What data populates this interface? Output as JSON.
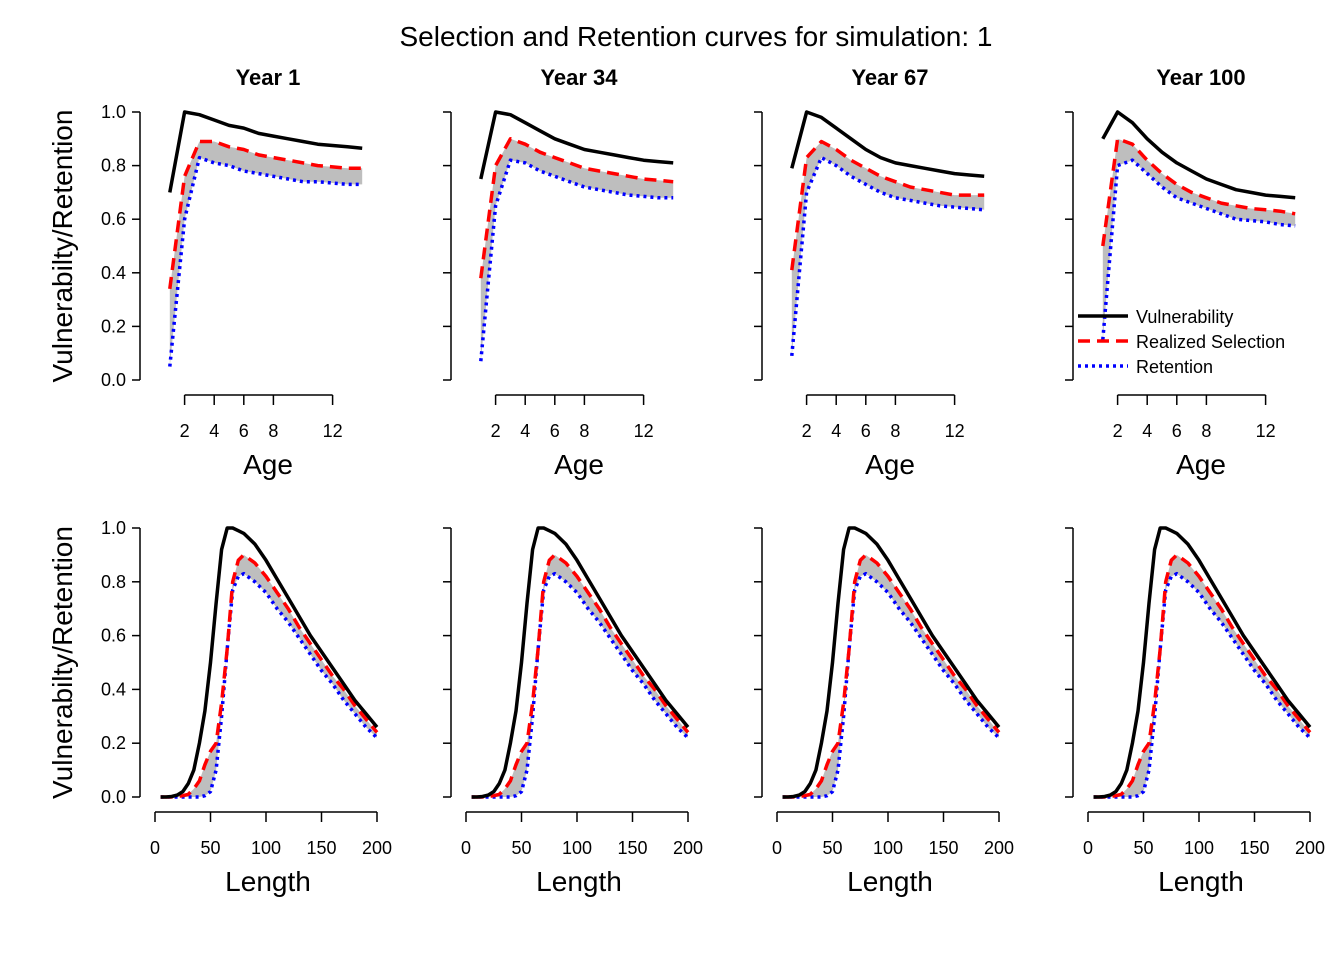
{
  "title": "Selection and Retention curves for simulation: 1",
  "legend": {
    "position": "bottom-right of top-right panel",
    "items": [
      "Vulnerability",
      "Realized Selection",
      "Retention"
    ]
  },
  "colors": {
    "vulnerability": "#000000",
    "selection": "#ff0000",
    "retention": "#0000ff",
    "band": "#bebebe"
  },
  "chart_data": [
    {
      "type": "line",
      "row": "age",
      "title": "Year 1",
      "xlabel": "Age",
      "ylabel": "Vulnerabilty/Retention",
      "xlim": [
        0,
        15
      ],
      "ylim": [
        0,
        1
      ],
      "xticks": [
        2,
        4,
        6,
        8,
        12
      ],
      "yticks": [
        "0.0",
        "0.2",
        "0.4",
        "0.6",
        "0.8",
        "1.0"
      ],
      "x": [
        1,
        2,
        3,
        4,
        5,
        6,
        7,
        8,
        9,
        10,
        11,
        12,
        13,
        14
      ],
      "series": [
        {
          "name": "Vulnerability",
          "values": [
            0.7,
            1.0,
            0.99,
            0.97,
            0.95,
            0.94,
            0.92,
            0.91,
            0.9,
            0.89,
            0.88,
            0.875,
            0.87,
            0.865
          ]
        },
        {
          "name": "Realized Selection",
          "values": [
            0.34,
            0.76,
            0.89,
            0.89,
            0.87,
            0.86,
            0.84,
            0.83,
            0.82,
            0.81,
            0.8,
            0.795,
            0.79,
            0.79
          ]
        },
        {
          "name": "Retention",
          "values": [
            0.05,
            0.6,
            0.83,
            0.81,
            0.8,
            0.78,
            0.77,
            0.76,
            0.75,
            0.74,
            0.74,
            0.735,
            0.73,
            0.73
          ]
        }
      ]
    },
    {
      "type": "line",
      "row": "age",
      "title": "Year 34",
      "xlabel": "Age",
      "ylabel": "",
      "xlim": [
        0,
        15
      ],
      "ylim": [
        0,
        1
      ],
      "xticks": [
        2,
        4,
        6,
        8,
        12
      ],
      "yticks": [],
      "x": [
        1,
        2,
        3,
        4,
        5,
        6,
        7,
        8,
        9,
        10,
        11,
        12,
        13,
        14
      ],
      "series": [
        {
          "name": "Vulnerability",
          "values": [
            0.75,
            1.0,
            0.99,
            0.96,
            0.93,
            0.9,
            0.88,
            0.86,
            0.85,
            0.84,
            0.83,
            0.82,
            0.815,
            0.81
          ]
        },
        {
          "name": "Realized Selection",
          "values": [
            0.38,
            0.8,
            0.9,
            0.88,
            0.85,
            0.83,
            0.81,
            0.79,
            0.78,
            0.77,
            0.76,
            0.75,
            0.745,
            0.74
          ]
        },
        {
          "name": "Retention",
          "values": [
            0.07,
            0.65,
            0.82,
            0.81,
            0.78,
            0.76,
            0.74,
            0.72,
            0.71,
            0.7,
            0.69,
            0.685,
            0.68,
            0.68
          ]
        }
      ]
    },
    {
      "type": "line",
      "row": "age",
      "title": "Year 67",
      "xlabel": "Age",
      "ylabel": "",
      "xlim": [
        0,
        15
      ],
      "ylim": [
        0,
        1
      ],
      "xticks": [
        2,
        4,
        6,
        8,
        12
      ],
      "yticks": [],
      "x": [
        1,
        2,
        3,
        4,
        5,
        6,
        7,
        8,
        9,
        10,
        11,
        12,
        13,
        14
      ],
      "series": [
        {
          "name": "Vulnerability",
          "values": [
            0.79,
            1.0,
            0.98,
            0.94,
            0.9,
            0.86,
            0.83,
            0.81,
            0.8,
            0.79,
            0.78,
            0.77,
            0.765,
            0.76
          ]
        },
        {
          "name": "Realized Selection",
          "values": [
            0.41,
            0.83,
            0.89,
            0.86,
            0.82,
            0.79,
            0.76,
            0.74,
            0.72,
            0.71,
            0.7,
            0.69,
            0.69,
            0.69
          ]
        },
        {
          "name": "Retention",
          "values": [
            0.09,
            0.7,
            0.83,
            0.8,
            0.76,
            0.73,
            0.7,
            0.68,
            0.67,
            0.66,
            0.65,
            0.645,
            0.64,
            0.635
          ]
        }
      ]
    },
    {
      "type": "line",
      "row": "age",
      "title": "Year 100",
      "xlabel": "Age",
      "ylabel": "",
      "xlim": [
        0,
        15
      ],
      "ylim": [
        0,
        1
      ],
      "xticks": [
        2,
        4,
        6,
        8,
        12
      ],
      "yticks": [],
      "x": [
        1,
        2,
        3,
        4,
        5,
        6,
        7,
        8,
        9,
        10,
        11,
        12,
        13,
        14
      ],
      "series": [
        {
          "name": "Vulnerability",
          "values": [
            0.9,
            1.0,
            0.96,
            0.9,
            0.85,
            0.81,
            0.78,
            0.75,
            0.73,
            0.71,
            0.7,
            0.69,
            0.685,
            0.68
          ]
        },
        {
          "name": "Realized Selection",
          "values": [
            0.5,
            0.9,
            0.88,
            0.82,
            0.77,
            0.73,
            0.7,
            0.68,
            0.66,
            0.65,
            0.64,
            0.635,
            0.63,
            0.62
          ]
        },
        {
          "name": "Retention",
          "values": [
            0.15,
            0.8,
            0.82,
            0.77,
            0.72,
            0.68,
            0.66,
            0.64,
            0.62,
            0.6,
            0.595,
            0.59,
            0.58,
            0.575
          ]
        }
      ]
    },
    {
      "type": "line",
      "row": "length",
      "title": "",
      "xlabel": "Length",
      "ylabel": "Vulnerabilty/Retention",
      "xlim": [
        0,
        200
      ],
      "ylim": [
        0,
        1
      ],
      "xticks": [
        0,
        50,
        100,
        150,
        200
      ],
      "yticks": [
        "0.0",
        "0.2",
        "0.4",
        "0.6",
        "0.8",
        "1.0"
      ],
      "x": [
        5,
        10,
        15,
        20,
        25,
        30,
        35,
        40,
        45,
        50,
        55,
        60,
        65,
        70,
        75,
        80,
        90,
        100,
        110,
        120,
        130,
        140,
        150,
        160,
        170,
        180,
        190,
        200
      ],
      "series": [
        {
          "name": "Vulnerability",
          "values": [
            0.0,
            0.0,
            0.002,
            0.007,
            0.02,
            0.05,
            0.1,
            0.2,
            0.32,
            0.5,
            0.72,
            0.92,
            1.0,
            1.0,
            0.99,
            0.98,
            0.94,
            0.88,
            0.81,
            0.74,
            0.67,
            0.6,
            0.54,
            0.48,
            0.42,
            0.36,
            0.31,
            0.26
          ]
        },
        {
          "name": "Realized Selection",
          "values": [
            0.0,
            0.0,
            0.0,
            0.002,
            0.005,
            0.01,
            0.03,
            0.06,
            0.12,
            0.17,
            0.2,
            0.35,
            0.55,
            0.8,
            0.88,
            0.9,
            0.87,
            0.82,
            0.76,
            0.7,
            0.63,
            0.57,
            0.51,
            0.45,
            0.4,
            0.34,
            0.29,
            0.24
          ]
        },
        {
          "name": "Retention",
          "values": [
            0.0,
            0.0,
            0.0,
            0.0,
            0.0,
            0.0,
            0.0,
            0.0,
            0.005,
            0.02,
            0.1,
            0.3,
            0.55,
            0.77,
            0.82,
            0.83,
            0.8,
            0.76,
            0.7,
            0.65,
            0.59,
            0.53,
            0.47,
            0.42,
            0.36,
            0.31,
            0.26,
            0.22
          ]
        }
      ]
    },
    {
      "type": "line",
      "row": "length",
      "title": "",
      "xlabel": "Length",
      "ylabel": "",
      "xlim": [
        0,
        200
      ],
      "ylim": [
        0,
        1
      ],
      "xticks": [
        0,
        50,
        100,
        150,
        200
      ],
      "yticks": [],
      "x": [
        5,
        10,
        15,
        20,
        25,
        30,
        35,
        40,
        45,
        50,
        55,
        60,
        65,
        70,
        75,
        80,
        90,
        100,
        110,
        120,
        130,
        140,
        150,
        160,
        170,
        180,
        190,
        200
      ],
      "series": [
        {
          "name": "Vulnerability",
          "values": [
            0.0,
            0.0,
            0.002,
            0.007,
            0.02,
            0.05,
            0.1,
            0.2,
            0.32,
            0.5,
            0.72,
            0.92,
            1.0,
            1.0,
            0.99,
            0.98,
            0.94,
            0.88,
            0.81,
            0.74,
            0.67,
            0.6,
            0.54,
            0.48,
            0.42,
            0.36,
            0.31,
            0.26
          ]
        },
        {
          "name": "Realized Selection",
          "values": [
            0.0,
            0.0,
            0.0,
            0.002,
            0.005,
            0.01,
            0.03,
            0.06,
            0.12,
            0.17,
            0.2,
            0.35,
            0.55,
            0.8,
            0.88,
            0.9,
            0.87,
            0.82,
            0.76,
            0.7,
            0.63,
            0.57,
            0.51,
            0.45,
            0.4,
            0.34,
            0.29,
            0.24
          ]
        },
        {
          "name": "Retention",
          "values": [
            0.0,
            0.0,
            0.0,
            0.0,
            0.0,
            0.0,
            0.0,
            0.0,
            0.005,
            0.02,
            0.1,
            0.3,
            0.55,
            0.77,
            0.82,
            0.83,
            0.8,
            0.76,
            0.7,
            0.65,
            0.59,
            0.53,
            0.47,
            0.42,
            0.36,
            0.31,
            0.26,
            0.22
          ]
        }
      ]
    },
    {
      "type": "line",
      "row": "length",
      "title": "",
      "xlabel": "Length",
      "ylabel": "",
      "xlim": [
        0,
        200
      ],
      "ylim": [
        0,
        1
      ],
      "xticks": [
        0,
        50,
        100,
        150,
        200
      ],
      "yticks": [],
      "x": [
        5,
        10,
        15,
        20,
        25,
        30,
        35,
        40,
        45,
        50,
        55,
        60,
        65,
        70,
        75,
        80,
        90,
        100,
        110,
        120,
        130,
        140,
        150,
        160,
        170,
        180,
        190,
        200
      ],
      "series": [
        {
          "name": "Vulnerability",
          "values": [
            0.0,
            0.0,
            0.002,
            0.007,
            0.02,
            0.05,
            0.1,
            0.2,
            0.32,
            0.5,
            0.72,
            0.92,
            1.0,
            1.0,
            0.99,
            0.98,
            0.94,
            0.88,
            0.81,
            0.74,
            0.67,
            0.6,
            0.54,
            0.48,
            0.42,
            0.36,
            0.31,
            0.26
          ]
        },
        {
          "name": "Realized Selection",
          "values": [
            0.0,
            0.0,
            0.0,
            0.002,
            0.005,
            0.01,
            0.03,
            0.06,
            0.12,
            0.17,
            0.2,
            0.35,
            0.55,
            0.8,
            0.88,
            0.9,
            0.87,
            0.82,
            0.76,
            0.7,
            0.63,
            0.57,
            0.51,
            0.45,
            0.4,
            0.34,
            0.29,
            0.24
          ]
        },
        {
          "name": "Retention",
          "values": [
            0.0,
            0.0,
            0.0,
            0.0,
            0.0,
            0.0,
            0.0,
            0.0,
            0.005,
            0.02,
            0.1,
            0.3,
            0.55,
            0.77,
            0.82,
            0.83,
            0.8,
            0.76,
            0.7,
            0.65,
            0.59,
            0.53,
            0.47,
            0.42,
            0.36,
            0.31,
            0.26,
            0.22
          ]
        }
      ]
    },
    {
      "type": "line",
      "row": "length",
      "title": "",
      "xlabel": "Length",
      "ylabel": "",
      "xlim": [
        0,
        200
      ],
      "ylim": [
        0,
        1
      ],
      "xticks": [
        0,
        50,
        100,
        150,
        200
      ],
      "yticks": [],
      "x": [
        5,
        10,
        15,
        20,
        25,
        30,
        35,
        40,
        45,
        50,
        55,
        60,
        65,
        70,
        75,
        80,
        90,
        100,
        110,
        120,
        130,
        140,
        150,
        160,
        170,
        180,
        190,
        200
      ],
      "series": [
        {
          "name": "Vulnerability",
          "values": [
            0.0,
            0.0,
            0.002,
            0.007,
            0.02,
            0.05,
            0.1,
            0.2,
            0.32,
            0.5,
            0.72,
            0.92,
            1.0,
            1.0,
            0.99,
            0.98,
            0.94,
            0.88,
            0.81,
            0.74,
            0.67,
            0.6,
            0.54,
            0.48,
            0.42,
            0.36,
            0.31,
            0.26
          ]
        },
        {
          "name": "Realized Selection",
          "values": [
            0.0,
            0.0,
            0.0,
            0.002,
            0.005,
            0.01,
            0.03,
            0.06,
            0.12,
            0.17,
            0.2,
            0.35,
            0.55,
            0.8,
            0.88,
            0.9,
            0.87,
            0.82,
            0.76,
            0.7,
            0.63,
            0.57,
            0.51,
            0.45,
            0.4,
            0.34,
            0.29,
            0.24
          ]
        },
        {
          "name": "Retention",
          "values": [
            0.0,
            0.0,
            0.0,
            0.0,
            0.0,
            0.0,
            0.0,
            0.0,
            0.005,
            0.02,
            0.1,
            0.3,
            0.55,
            0.77,
            0.82,
            0.83,
            0.8,
            0.76,
            0.7,
            0.65,
            0.59,
            0.53,
            0.47,
            0.42,
            0.36,
            0.31,
            0.26,
            0.22
          ]
        }
      ]
    }
  ]
}
